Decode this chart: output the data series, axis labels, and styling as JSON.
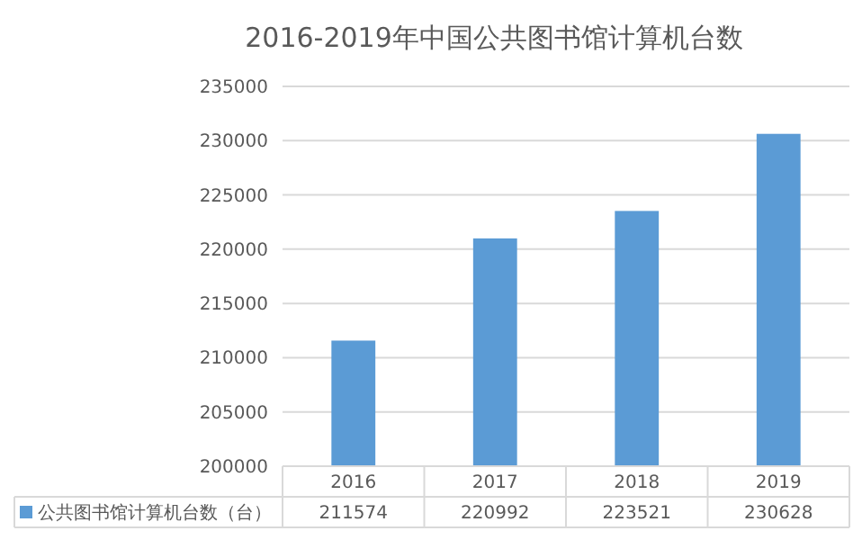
{
  "chart_data": {
    "type": "bar",
    "title": "2016-2019年中国公共图书馆计算机台数",
    "categories": [
      "2016",
      "2017",
      "2018",
      "2019"
    ],
    "series": [
      {
        "name": "公共图书馆计算机台数（台）",
        "color": "#5b9bd5",
        "values": [
          211574,
          220992,
          223521,
          230628
        ]
      }
    ],
    "ylim": [
      200000,
      235000
    ],
    "yticks": [
      200000,
      205000,
      210000,
      215000,
      220000,
      225000,
      230000,
      235000
    ],
    "grid": "y",
    "data_labels": true,
    "legend": "bottom"
  }
}
